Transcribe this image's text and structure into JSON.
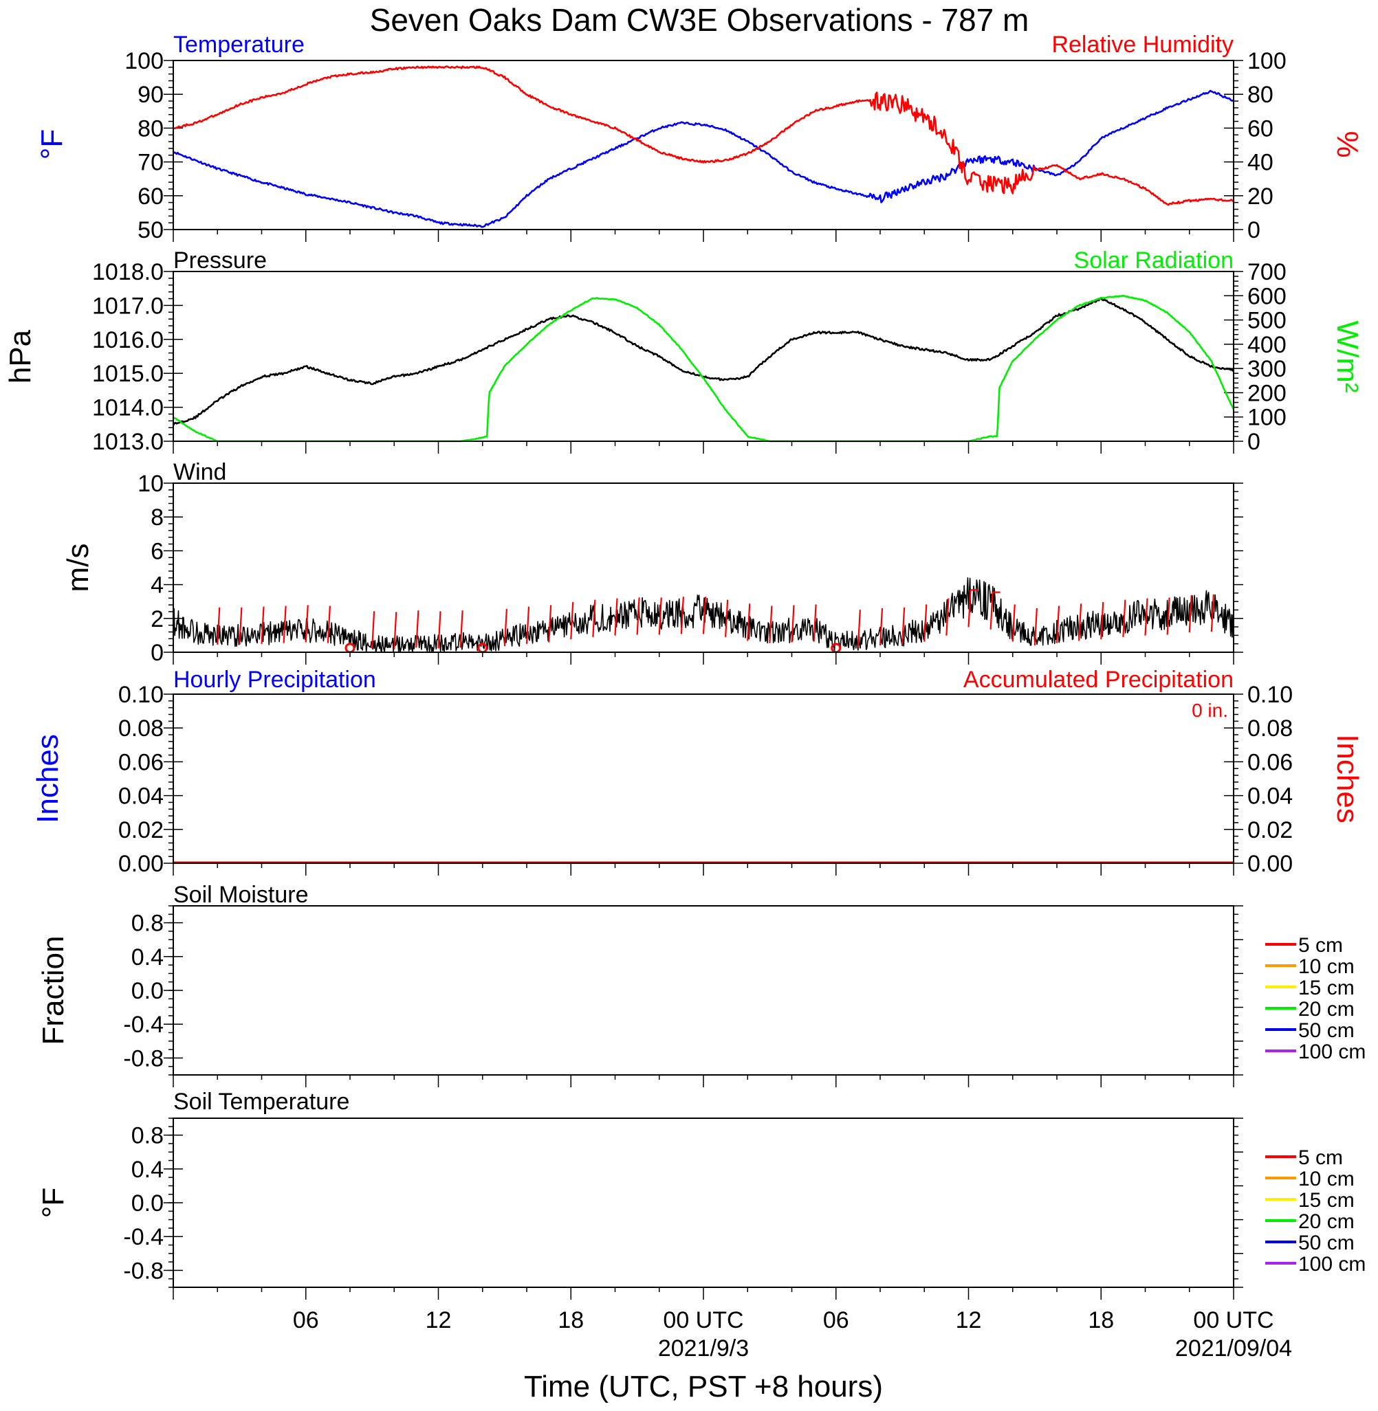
{
  "title": "Seven Oaks Dam CW3E Observations - 787 m",
  "x_axis": {
    "label": "Time (UTC, PST +8 hours)",
    "ticks": [
      {
        "h": 6,
        "label": "06"
      },
      {
        "h": 12,
        "label": "12"
      },
      {
        "h": 18,
        "label": "18"
      },
      {
        "h": 24,
        "label": "00 UTC"
      },
      {
        "h": 30,
        "label": "06"
      },
      {
        "h": 36,
        "label": "12"
      },
      {
        "h": 42,
        "label": "18"
      },
      {
        "h": 48,
        "label": "00 UTC"
      }
    ],
    "dates": [
      {
        "h": 24,
        "label": "2021/9/3"
      },
      {
        "h": 48,
        "label": "2021/09/04"
      }
    ]
  },
  "colors": {
    "temperature": "#0000ff",
    "humidity": "#ff0000",
    "pressure": "#000000",
    "solar": "#00ee00",
    "wind": "#000000",
    "barb": "#ff0000",
    "precip_acc": "#cc0000"
  },
  "panels": {
    "temp_rh": {
      "left_title": "Temperature",
      "right_title": "Relative Humidity",
      "left_unit": "°F",
      "right_unit": "%",
      "left_ticks": [
        "100",
        "90",
        "80",
        "70",
        "60",
        "50"
      ],
      "right_ticks": [
        "100",
        "80",
        "60",
        "40",
        "20",
        "0"
      ]
    },
    "pressure_solar": {
      "left_title": "Pressure",
      "right_title": "Solar Radiation",
      "left_unit": "hPa",
      "right_unit": "W/m²",
      "left_ticks": [
        "1018.0",
        "1017.0",
        "1016.0",
        "1015.0",
        "1014.0",
        "1013.0"
      ],
      "right_ticks": [
        "700",
        "600",
        "500",
        "400",
        "300",
        "200",
        "100",
        "0"
      ]
    },
    "wind": {
      "left_title": "Wind",
      "left_unit": "m/s",
      "left_ticks": [
        "10",
        "8",
        "6",
        "4",
        "2",
        "0"
      ]
    },
    "precip": {
      "left_title": "Hourly Precipitation",
      "right_title": "Accumulated Precipitation",
      "total": "0 in.",
      "left_unit": "Inches",
      "right_unit": "Inches",
      "left_ticks": [
        "0.10",
        "0.08",
        "0.06",
        "0.04",
        "0.02",
        "0.00"
      ],
      "right_ticks": [
        "0.10",
        "0.08",
        "0.06",
        "0.04",
        "0.02",
        "0.00"
      ]
    },
    "soil_moisture": {
      "left_title": "Soil Moisture",
      "left_unit": "Fraction",
      "left_ticks": [
        "0.8",
        "0.4",
        "0.0",
        "-0.4",
        "-0.8"
      ],
      "legend": [
        "5 cm",
        "10 cm",
        "15 cm",
        "20 cm",
        "50 cm",
        "100 cm"
      ]
    },
    "soil_temp": {
      "left_title": "Soil Temperature",
      "left_unit": "°F",
      "left_ticks": [
        "0.8",
        "0.4",
        "0.0",
        "-0.4",
        "-0.8"
      ],
      "legend": [
        "5 cm",
        "10 cm",
        "15 cm",
        "20 cm",
        "50 cm",
        "100 cm"
      ]
    }
  },
  "legend_colors": [
    "#ff0000",
    "#ff9900",
    "#ffee00",
    "#00ee00",
    "#0000ee",
    "#aa22ee"
  ],
  "chart_data": [
    {
      "type": "line",
      "x_units": "hours since 2021-09-02 00 UTC",
      "series": [
        {
          "name": "Temperature",
          "axis": "left",
          "unit": "°F",
          "x": [
            0,
            2,
            4,
            6,
            8,
            9,
            10,
            11,
            12,
            13,
            14,
            15,
            16,
            17,
            18,
            19,
            20,
            21,
            22,
            23,
            24,
            25,
            26,
            27,
            28,
            29,
            30,
            31,
            32,
            33,
            34,
            35,
            36,
            37,
            38,
            39,
            40,
            41,
            42,
            43,
            44,
            45,
            46,
            47,
            48
          ],
          "y": [
            73,
            68,
            64,
            60.5,
            58,
            56.5,
            55,
            54,
            52,
            51.5,
            51,
            53.5,
            60,
            65,
            68,
            71,
            74,
            77,
            80,
            81.5,
            81,
            79.5,
            76,
            72,
            67,
            64,
            62,
            60.5,
            59,
            62,
            64,
            66,
            70.5,
            71,
            70,
            68,
            66,
            70,
            77,
            80,
            83,
            86,
            88.5,
            91,
            88
          ]
        },
        {
          "name": "Relative Humidity",
          "axis": "right",
          "unit": "%",
          "x": [
            0,
            1,
            2,
            3,
            4,
            5,
            6,
            7,
            8,
            9,
            10,
            11,
            12,
            13,
            14,
            15,
            16,
            17,
            18,
            19,
            20,
            21,
            22,
            23,
            24,
            25,
            26,
            27,
            28,
            29,
            30,
            31,
            32,
            33,
            34,
            35,
            36,
            37,
            38,
            39,
            40,
            41,
            42,
            43,
            44,
            45,
            46,
            47,
            48
          ],
          "y": [
            60,
            63,
            68,
            74,
            78,
            81,
            86,
            90,
            92,
            93,
            95,
            96,
            96,
            96,
            96,
            90,
            80,
            73,
            68,
            64,
            60,
            53,
            46,
            42,
            40,
            41,
            45,
            52,
            62,
            70,
            73,
            76,
            76,
            74,
            66,
            56,
            30,
            27,
            26,
            35,
            38,
            30,
            33,
            30,
            24,
            15,
            17,
            18,
            17
          ]
        }
      ],
      "ylim_left": [
        50,
        100
      ],
      "ylim_right": [
        0,
        100
      ]
    },
    {
      "type": "line",
      "x_units": "hours since 2021-09-02 00 UTC",
      "series": [
        {
          "name": "Pressure",
          "axis": "left",
          "unit": "hPa",
          "x": [
            0,
            1,
            2,
            3,
            4,
            5,
            6,
            7,
            8,
            9,
            10,
            11,
            12,
            13,
            14,
            15,
            16,
            17,
            18,
            19,
            20,
            21,
            22,
            23,
            24,
            25,
            26,
            27,
            28,
            29,
            30,
            31,
            32,
            33,
            34,
            35,
            36,
            37,
            38,
            39,
            40,
            41,
            42,
            43,
            44,
            45,
            46,
            47,
            48
          ],
          "y": [
            1013.5,
            1013.7,
            1014.2,
            1014.6,
            1014.9,
            1015.0,
            1015.2,
            1015.0,
            1014.8,
            1014.7,
            1014.9,
            1015.0,
            1015.2,
            1015.4,
            1015.7,
            1016.0,
            1016.3,
            1016.6,
            1016.7,
            1016.5,
            1016.2,
            1015.8,
            1015.5,
            1015.1,
            1014.9,
            1014.8,
            1014.9,
            1015.5,
            1016.0,
            1016.2,
            1016.2,
            1016.2,
            1016.0,
            1015.8,
            1015.7,
            1015.6,
            1015.4,
            1015.4,
            1015.8,
            1016.2,
            1016.7,
            1016.9,
            1017.2,
            1016.9,
            1016.5,
            1016.0,
            1015.5,
            1015.2,
            1015.1
          ]
        },
        {
          "name": "Solar Radiation",
          "axis": "right",
          "unit": "W/m²",
          "x": [
            0,
            1,
            2,
            13,
            14,
            14.2,
            14.3,
            15,
            16,
            17,
            18,
            19,
            20,
            21,
            22,
            23,
            24,
            25,
            26,
            27,
            28,
            29,
            30,
            31,
            32,
            33,
            34,
            36,
            37,
            37.3,
            37.4,
            38,
            39,
            40,
            41,
            42,
            43,
            44,
            45,
            46,
            47,
            48
          ],
          "y": [
            100,
            40,
            0,
            0,
            15,
            20,
            200,
            310,
            400,
            480,
            540,
            590,
            585,
            550,
            480,
            380,
            260,
            130,
            20,
            0,
            0,
            0,
            0,
            0,
            0,
            0,
            0,
            0,
            20,
            20,
            220,
            330,
            420,
            500,
            560,
            590,
            600,
            580,
            530,
            450,
            330,
            130
          ]
        }
      ],
      "ylim_left": [
        1013.0,
        1018.0
      ],
      "ylim_right": [
        0,
        700
      ]
    },
    {
      "type": "line",
      "x_units": "hours since 2021-09-02 00 UTC",
      "series": [
        {
          "name": "Wind",
          "unit": "m/s",
          "x": [
            0,
            1,
            2,
            3,
            4,
            5,
            6,
            7,
            8,
            9,
            10,
            11,
            12,
            13,
            14,
            15,
            16,
            17,
            18,
            19,
            20,
            21,
            22,
            23,
            24,
            25,
            26,
            27,
            28,
            29,
            30,
            31,
            32,
            33,
            34,
            35,
            36,
            37,
            38,
            39,
            40,
            41,
            42,
            43,
            44,
            45,
            46,
            47,
            48
          ],
          "y": [
            1.8,
            1.2,
            1.0,
            1.0,
            1.1,
            1.2,
            1.3,
            1.2,
            0.8,
            0.5,
            0.4,
            0.6,
            0.5,
            0.6,
            0.5,
            0.8,
            1.1,
            1.3,
            1.7,
            2.0,
            2.2,
            2.3,
            2.3,
            2.4,
            2.4,
            2.0,
            1.5,
            1.2,
            1.3,
            1.4,
            0.6,
            0.7,
            0.9,
            1.0,
            1.4,
            2.2,
            3.3,
            3.0,
            1.4,
            0.9,
            1.2,
            1.5,
            1.7,
            2.0,
            2.2,
            2.3,
            2.6,
            2.7,
            1.6
          ]
        }
      ],
      "calm_marks_h": [
        8,
        14,
        30
      ],
      "ylim": [
        0,
        10
      ]
    },
    {
      "type": "line",
      "series": [
        {
          "name": "Hourly Precipitation",
          "axis": "left",
          "values": [
            0
          ]
        },
        {
          "name": "Accumulated Precipitation",
          "axis": "right",
          "values": [
            0
          ]
        }
      ],
      "ylim": [
        0.0,
        0.1
      ]
    },
    {
      "type": "line",
      "series": [],
      "ylim": [
        -1.0,
        1.0
      ]
    },
    {
      "type": "line",
      "series": [],
      "ylim": [
        -1.0,
        1.0
      ]
    }
  ]
}
